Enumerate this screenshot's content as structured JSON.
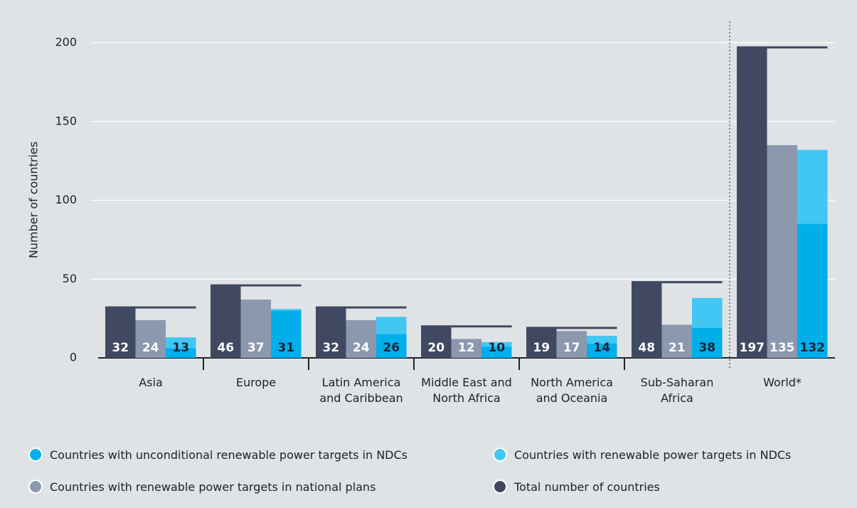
{
  "chart_data": {
    "type": "bar",
    "y_label": "Number of countries",
    "categories": [
      "Asia",
      "Europe",
      "Latin America and Caribbean",
      "Middle East and North Africa",
      "North America and Oceania",
      "Sub-Saharan Africa",
      "World*"
    ],
    "series": [
      {
        "name": "Countries with unconditional renewable power targets in NDCs",
        "color": "#00aeea",
        "values": [
          6,
          30,
          15,
          7,
          9,
          19,
          85
        ]
      },
      {
        "name": "Countries with renewable power targets in NDCs",
        "color": "#42c6f2",
        "values": [
          13,
          31,
          26,
          10,
          14,
          38,
          132
        ]
      },
      {
        "name": "Countries with renewable power targets in national plans",
        "color": "#8c98ae",
        "values": [
          24,
          37,
          24,
          12,
          17,
          21,
          135
        ]
      },
      {
        "name": "Total number of countries",
        "color": "#414962",
        "values": [
          32,
          46,
          32,
          20,
          19,
          48,
          197
        ]
      }
    ],
    "ylim": [
      0,
      200
    ],
    "yticks": [
      0,
      50,
      100,
      150,
      200
    ],
    "grid": true,
    "legend": "bottom"
  }
}
